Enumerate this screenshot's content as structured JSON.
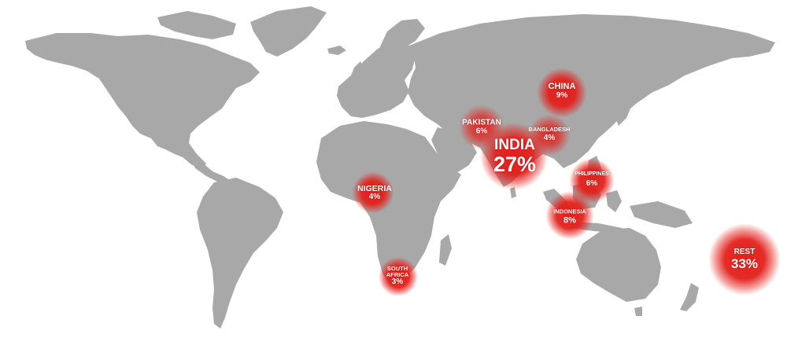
{
  "colors": {
    "land": "#a8a8a8",
    "bubble": "#e3211c",
    "background": "#ffffff"
  },
  "markers": {
    "india": {
      "name": "INDIA",
      "value": "27%",
      "share": 27
    },
    "rest": {
      "name": "REST",
      "value": "33%",
      "share": 33
    },
    "china": {
      "name": "CHINA",
      "value": "9%",
      "share": 9
    },
    "indonesia": {
      "name": "INDONESIA",
      "value": "8%",
      "share": 8
    },
    "pakistan": {
      "name": "PAKISTAN",
      "value": "6%",
      "share": 6
    },
    "philippines": {
      "name": "PHILIPPINES",
      "value": "6%",
      "share": 6
    },
    "bangladesh": {
      "name": "BANGLADESH",
      "value": "4%",
      "share": 4
    },
    "nigeria": {
      "name": "NIGERIA",
      "value": "4%",
      "share": 4
    },
    "south_africa": {
      "name": "SOUTH AFRICA",
      "name_line1": "SOUTH",
      "name_line2": "AFRICA",
      "value": "3%",
      "share": 3
    }
  }
}
